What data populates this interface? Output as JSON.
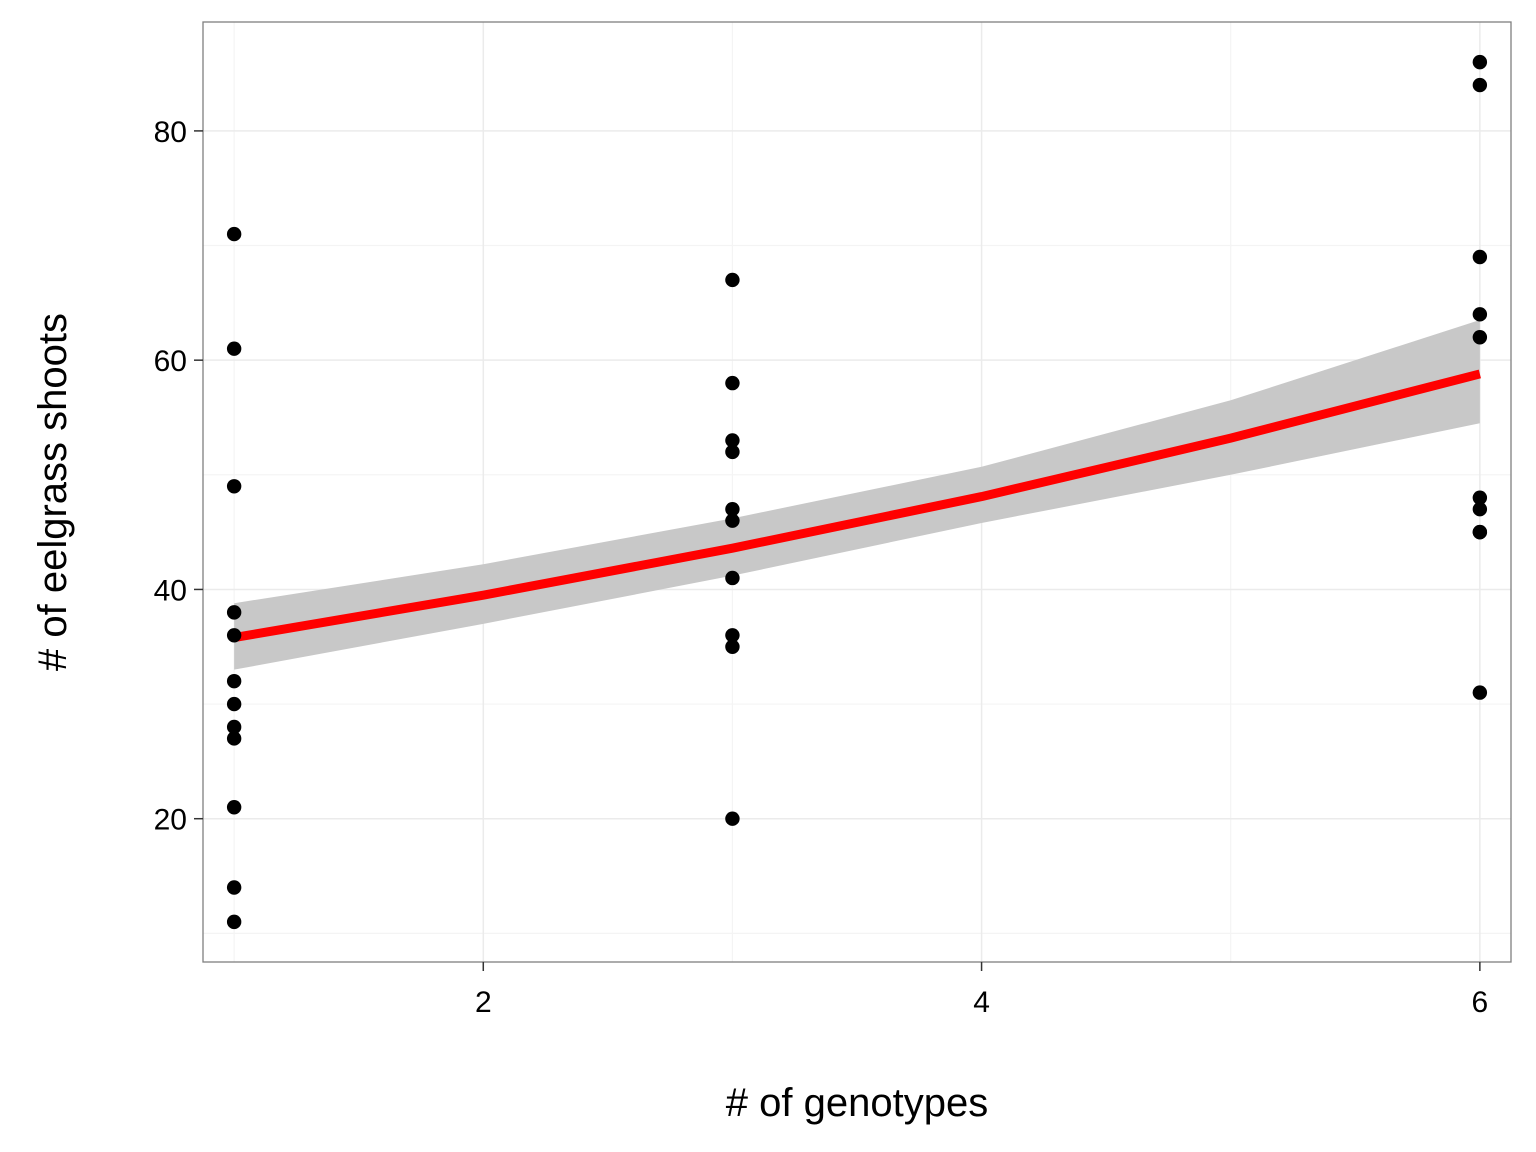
{
  "chart_data": {
    "type": "scatter",
    "title": "",
    "xlabel": "# of genotypes",
    "ylabel": "# of eelgrass shoots",
    "xlim": [
      0.875,
      6.125
    ],
    "ylim": [
      7.5,
      89.5
    ],
    "x_ticks": [
      2,
      4,
      6
    ],
    "y_ticks": [
      20,
      40,
      60,
      80
    ],
    "x_minor_ticks": [
      1,
      3,
      5
    ],
    "y_minor_ticks": [
      10,
      30,
      50,
      70
    ],
    "grid": true,
    "legend": "none",
    "colors": {
      "points": "#000000",
      "trend_line": "#ff0000",
      "confidence_band": "#c8c8c8",
      "grid": "#ebebeb",
      "panel_border": "#7f7f7f"
    },
    "series": [
      {
        "kind": "points",
        "points": [
          [
            1,
            71
          ],
          [
            1,
            61
          ],
          [
            1,
            49
          ],
          [
            1,
            38
          ],
          [
            1,
            36
          ],
          [
            1,
            32
          ],
          [
            1,
            30
          ],
          [
            1,
            28
          ],
          [
            1,
            27
          ],
          [
            1,
            21
          ],
          [
            1,
            14
          ],
          [
            1,
            11
          ],
          [
            3,
            67
          ],
          [
            3,
            58
          ],
          [
            3,
            53
          ],
          [
            3,
            52
          ],
          [
            3,
            47
          ],
          [
            3,
            46
          ],
          [
            3,
            41
          ],
          [
            3,
            36
          ],
          [
            3,
            35
          ],
          [
            3,
            20
          ],
          [
            6,
            86
          ],
          [
            6,
            84
          ],
          [
            6,
            69
          ],
          [
            6,
            64
          ],
          [
            6,
            62
          ],
          [
            6,
            48
          ],
          [
            6,
            47
          ],
          [
            6,
            45
          ],
          [
            6,
            45
          ],
          [
            6,
            31
          ]
        ]
      },
      {
        "kind": "fit",
        "x": [
          1.0,
          2.0,
          3.0,
          4.0,
          5.0,
          6.0
        ],
        "y": [
          35.8,
          39.5,
          43.6,
          48.1,
          53.2,
          58.8
        ],
        "lower": [
          33.0,
          37.0,
          41.2,
          45.8,
          50.0,
          54.5
        ],
        "upper": [
          38.8,
          42.2,
          46.2,
          50.7,
          56.5,
          63.5
        ]
      }
    ]
  }
}
